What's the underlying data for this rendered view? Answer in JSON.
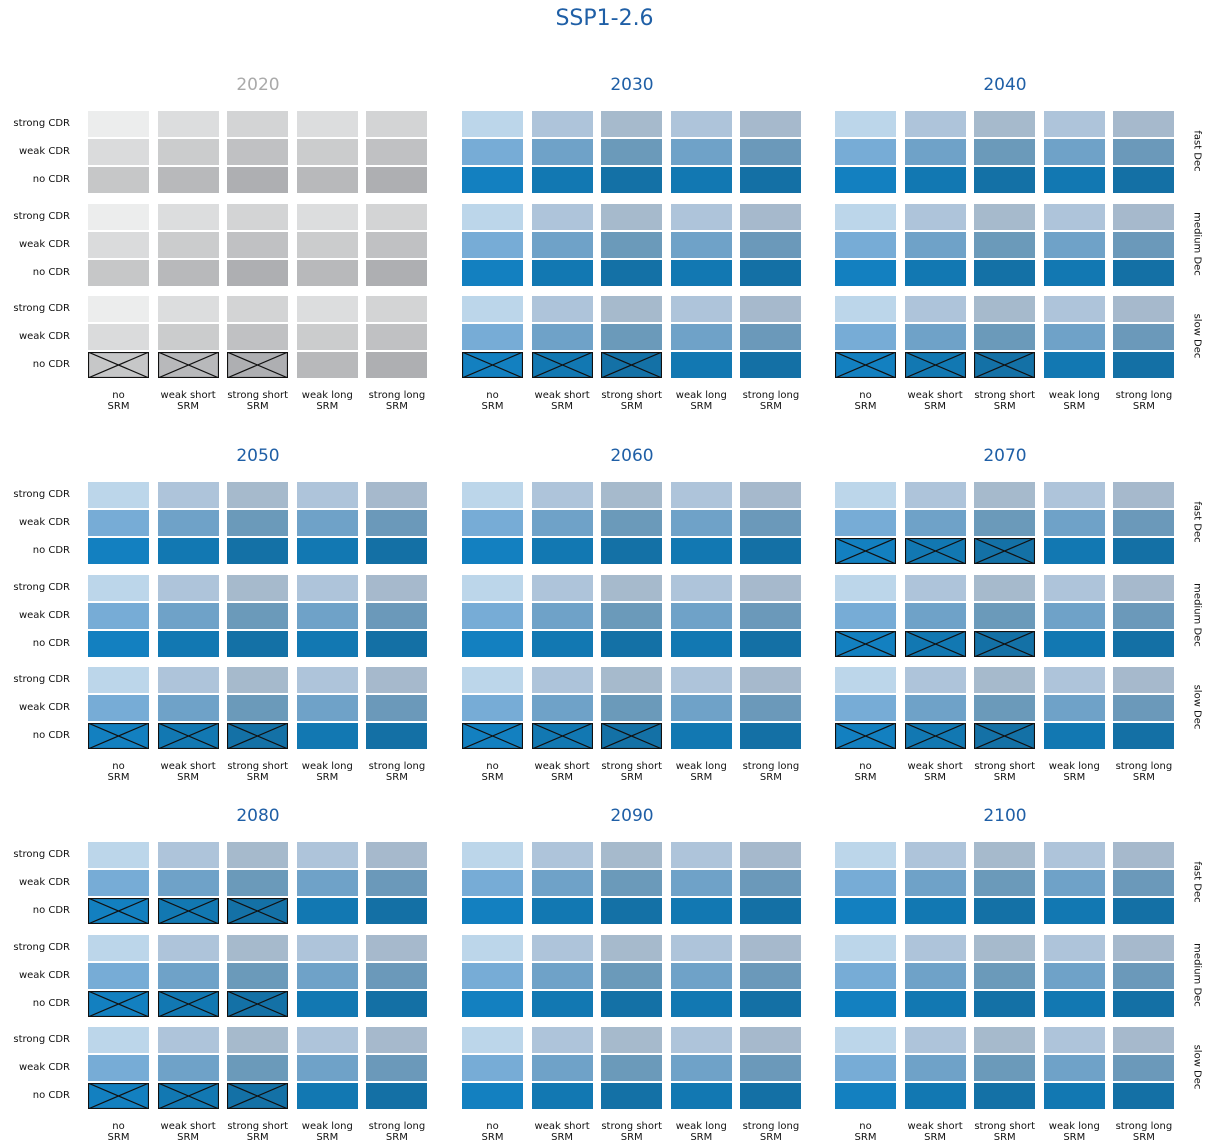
{
  "header": {
    "title": "SSP1-2.6"
  },
  "row_labels": [
    "strong CDR",
    "weak CDR",
    "no CDR"
  ],
  "column_labels": [
    "no\nSRM",
    "weak short\nSRM",
    "strong short\nSRM",
    "weak long\nSRM",
    "strong long\nSRM"
  ],
  "group_labels": [
    "fast Dec",
    "medium Dec",
    "slow Dec"
  ],
  "colors": [
    [
      "#bcd6ea",
      "#aec4da",
      "#a6bacc",
      "#aec4da",
      "#a6b9cc"
    ],
    [
      "#77acd6",
      "#6fa2c8",
      "#6b9aba",
      "#6fa2c8",
      "#6b99ba"
    ],
    [
      "#1380c0",
      "#1278b2",
      "#1471a6",
      "#1278b2",
      "#1470a5"
    ]
  ],
  "grey_colors": [
    [
      "#eceded",
      "#dcddde",
      "#d3d4d5",
      "#dcddde",
      "#d3d4d5"
    ],
    [
      "#dadbdc",
      "#cbcccd",
      "#c0c1c3",
      "#cbcccd",
      "#c0c1c3"
    ],
    [
      "#c6c7c8",
      "#b8b9bb",
      "#aeafb2",
      "#b8b9bb",
      "#aeafb2"
    ]
  ],
  "panels": [
    {
      "title": "2020",
      "greyed": true,
      "crossed": [
        [
          2,
          2,
          0
        ],
        [
          2,
          2,
          1
        ],
        [
          2,
          2,
          2
        ]
      ]
    },
    {
      "title": "2030",
      "greyed": false,
      "crossed": [
        [
          2,
          2,
          0
        ],
        [
          2,
          2,
          1
        ],
        [
          2,
          2,
          2
        ]
      ]
    },
    {
      "title": "2040",
      "greyed": false,
      "crossed": [
        [
          2,
          2,
          0
        ],
        [
          2,
          2,
          1
        ],
        [
          2,
          2,
          2
        ]
      ]
    },
    {
      "title": "2050",
      "greyed": false,
      "crossed": [
        [
          2,
          2,
          0
        ],
        [
          2,
          2,
          1
        ],
        [
          2,
          2,
          2
        ]
      ]
    },
    {
      "title": "2060",
      "greyed": false,
      "crossed": [
        [
          2,
          2,
          0
        ],
        [
          2,
          2,
          1
        ],
        [
          2,
          2,
          2
        ]
      ]
    },
    {
      "title": "2070",
      "greyed": false,
      "crossed": [
        [
          0,
          2,
          0
        ],
        [
          0,
          2,
          1
        ],
        [
          0,
          2,
          2
        ],
        [
          1,
          2,
          0
        ],
        [
          1,
          2,
          1
        ],
        [
          1,
          2,
          2
        ],
        [
          2,
          2,
          0
        ],
        [
          2,
          2,
          1
        ],
        [
          2,
          2,
          2
        ]
      ]
    },
    {
      "title": "2080",
      "greyed": false,
      "crossed": [
        [
          0,
          2,
          0
        ],
        [
          0,
          2,
          1
        ],
        [
          0,
          2,
          2
        ],
        [
          1,
          2,
          0
        ],
        [
          1,
          2,
          1
        ],
        [
          1,
          2,
          2
        ],
        [
          2,
          2,
          0
        ],
        [
          2,
          2,
          1
        ],
        [
          2,
          2,
          2
        ]
      ]
    },
    {
      "title": "2090",
      "greyed": false,
      "crossed": []
    },
    {
      "title": "2100",
      "greyed": false,
      "crossed": []
    }
  ]
}
